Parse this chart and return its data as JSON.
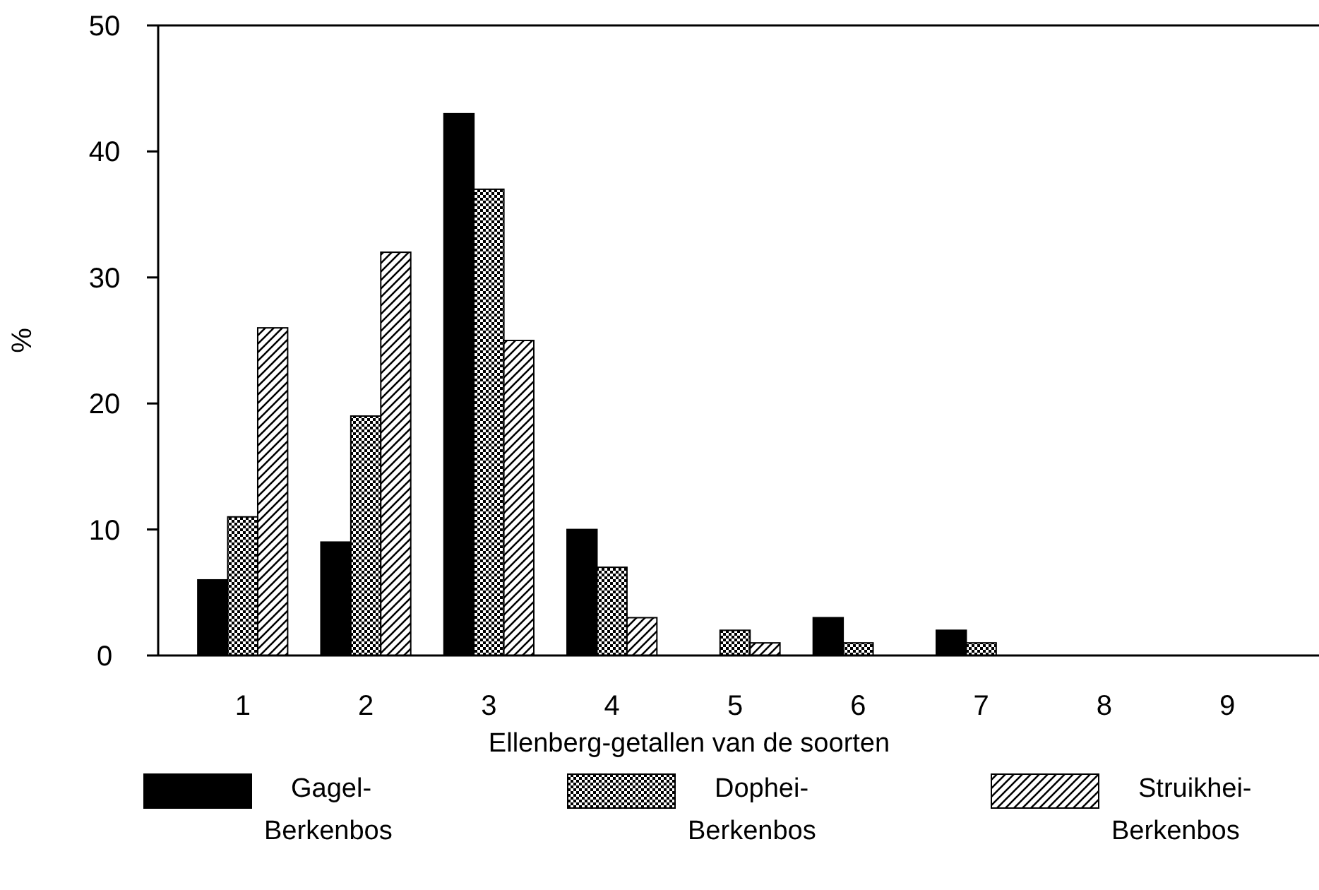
{
  "chart_data": {
    "type": "bar",
    "xlabel": "Ellenberg-getallen van de soorten",
    "ylabel": "%",
    "categories": [
      "1",
      "2",
      "3",
      "4",
      "5",
      "6",
      "7",
      "8",
      "9"
    ],
    "series": [
      {
        "name": "Gagel-\nBerkenbos",
        "color": "#000000",
        "values": [
          6,
          9,
          43,
          10,
          0,
          3,
          2,
          0,
          0
        ]
      },
      {
        "name": "Dophei-\nBerkenbos",
        "color": "#000000",
        "values": [
          11,
          19,
          37,
          7,
          2,
          1,
          1,
          0,
          0
        ]
      },
      {
        "name": "Struikhei-\nBerkenbos",
        "color": "#000000",
        "values": [
          26,
          32,
          25,
          3,
          1,
          0,
          0,
          0,
          0
        ]
      }
    ],
    "ylim": [
      0,
      50
    ],
    "yticks": [
      0,
      10,
      20,
      30,
      40,
      50
    ],
    "grid": false,
    "legend": "bottom"
  }
}
